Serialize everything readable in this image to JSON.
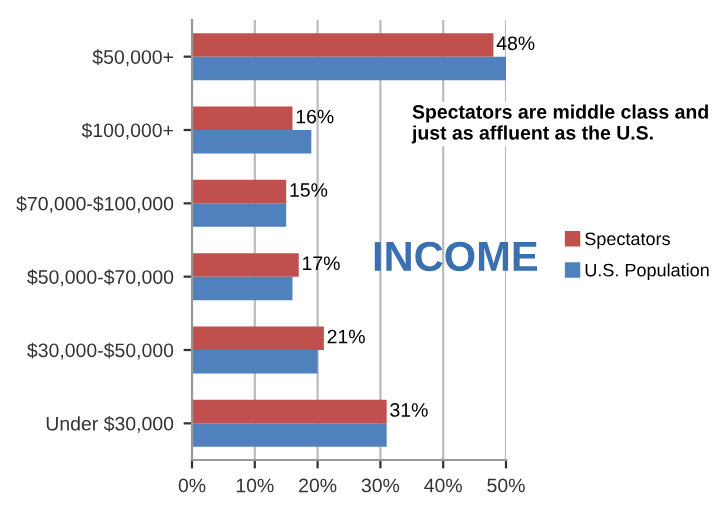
{
  "chart_data": {
    "type": "bar",
    "orientation": "horizontal",
    "categories": [
      "$50,000+",
      "$100,000+",
      "$70,000-$100,000",
      "$50,000-$70,000",
      "$30,000-$50,000",
      "Under $30,000"
    ],
    "series": [
      {
        "name": "Spectators",
        "color": "#c0504d",
        "values": [
          48,
          16,
          15,
          17,
          21,
          31
        ],
        "value_labels": [
          "48%",
          "16%",
          "15%",
          "17%",
          "21%",
          "31%"
        ]
      },
      {
        "name": "U.S. Population",
        "color": "#4f81bd",
        "values": [
          50,
          19,
          15,
          16,
          20,
          31
        ]
      }
    ],
    "xlim": [
      0,
      50
    ],
    "xticks": [
      {
        "value": 0,
        "label": "0%"
      },
      {
        "value": 10,
        "label": "10%"
      },
      {
        "value": 20,
        "label": "20%"
      },
      {
        "value": 30,
        "label": "30%"
      },
      {
        "value": 40,
        "label": "40%"
      },
      {
        "value": 50,
        "label": "50%"
      }
    ],
    "grid": "x",
    "legend": "right",
    "annotations": [
      "Spectators are middle class and just as affluent as the U.S.",
      "INCOME"
    ]
  }
}
